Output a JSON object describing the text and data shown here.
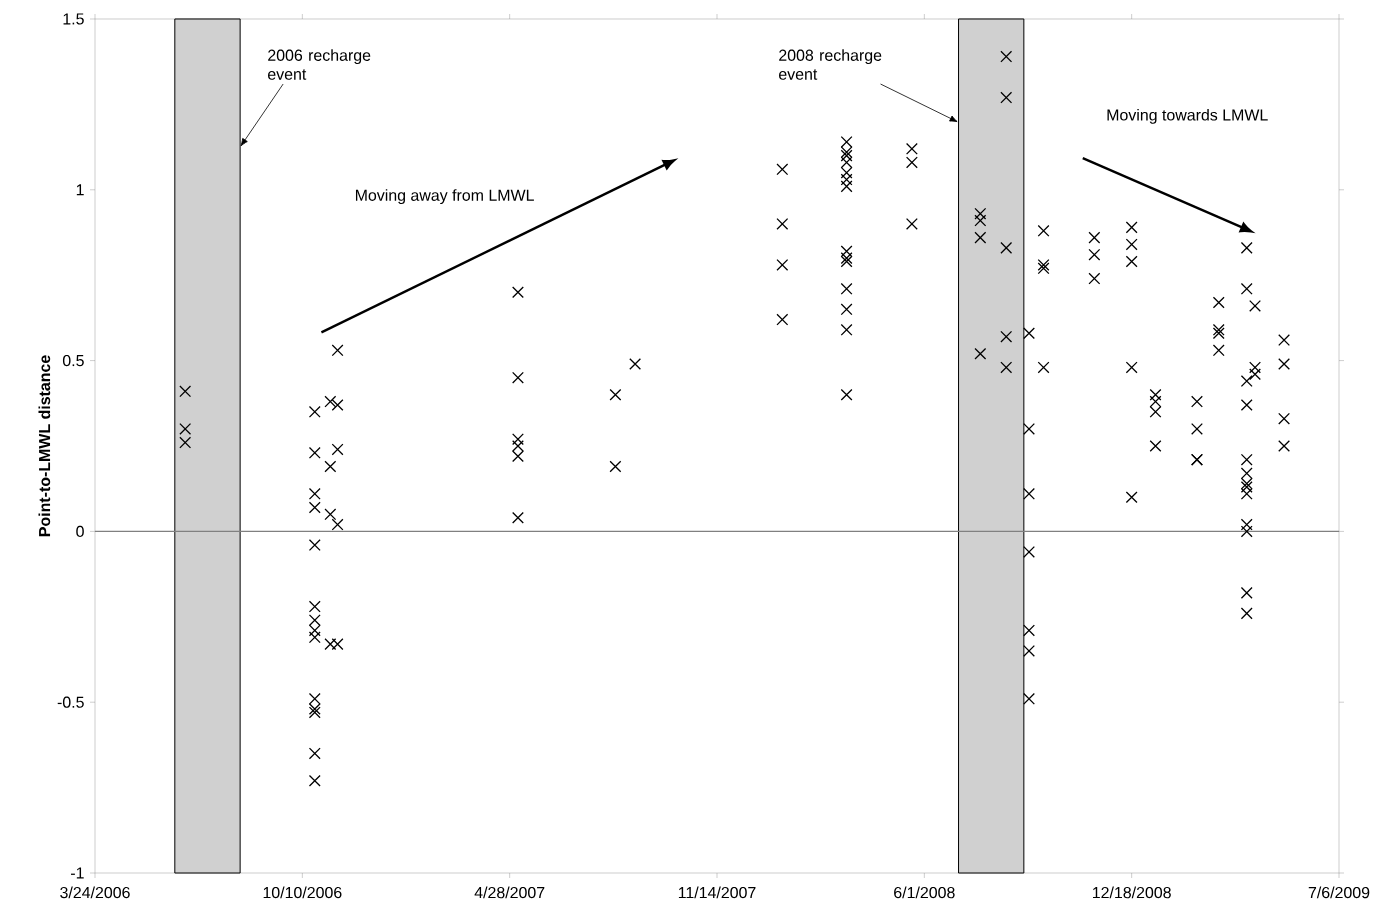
{
  "chart_data": {
    "type": "scatter",
    "ylabel": "Point-to-LMWL distance",
    "annotations": [
      "Moving away from LMWL",
      "Moving towards LMWL"
    ],
    "x": [
      "2006-06-19",
      "2006-06-19",
      "2006-06-19",
      "2006-10-22",
      "2006-10-22",
      "2006-10-22",
      "2006-10-22",
      "2006-10-22",
      "2006-10-22",
      "2006-10-22",
      "2006-10-22",
      "2006-10-22",
      "2006-10-22",
      "2006-10-22",
      "2006-10-22",
      "2006-10-22",
      "2006-10-22",
      "2006-11-06",
      "2006-11-06",
      "2006-11-06",
      "2006-11-06",
      "2006-11-13",
      "2006-11-13",
      "2006-11-13",
      "2006-11-13",
      "2006-11-13",
      "2007-05-06",
      "2007-05-06",
      "2007-05-06",
      "2007-05-06",
      "2007-05-06",
      "2007-05-06",
      "2007-08-08",
      "2007-08-08",
      "2007-08-27",
      "2008-01-16",
      "2008-01-16",
      "2008-01-16",
      "2008-01-16",
      "2008-03-18",
      "2008-03-18",
      "2008-03-18",
      "2008-03-18",
      "2008-03-18",
      "2008-03-18",
      "2008-03-18",
      "2008-03-18",
      "2008-03-18",
      "2008-03-18",
      "2008-03-18",
      "2008-03-18",
      "2008-03-18",
      "2008-03-18",
      "2008-05-20",
      "2008-05-20",
      "2008-05-20",
      "2008-07-25",
      "2008-07-25",
      "2008-07-25",
      "2008-07-25",
      "2008-08-19",
      "2008-08-19",
      "2008-08-19",
      "2008-08-19",
      "2008-08-19",
      "2008-09-10",
      "2008-09-10",
      "2008-09-10",
      "2008-09-10",
      "2008-09-10",
      "2008-09-10",
      "2008-09-10",
      "2008-09-24",
      "2008-09-24",
      "2008-09-24",
      "2008-09-24",
      "2008-11-12",
      "2008-11-12",
      "2008-11-12",
      "2008-12-18",
      "2008-12-18",
      "2008-12-18",
      "2008-12-18",
      "2008-12-18",
      "2009-01-10",
      "2009-01-10",
      "2009-01-10",
      "2009-01-10",
      "2009-02-19",
      "2009-02-19",
      "2009-02-19",
      "2009-02-19",
      "2009-03-12",
      "2009-03-12",
      "2009-03-12",
      "2009-03-12",
      "2009-04-08",
      "2009-04-08",
      "2009-04-08",
      "2009-04-08",
      "2009-04-08",
      "2009-04-08",
      "2009-04-08",
      "2009-04-08",
      "2009-04-08",
      "2009-04-08",
      "2009-04-08",
      "2009-04-08",
      "2009-04-08",
      "2009-04-16",
      "2009-04-16",
      "2009-04-16",
      "2009-05-14",
      "2009-05-14",
      "2009-05-14",
      "2009-05-14"
    ],
    "values": [
      0.41,
      0.3,
      0.26,
      0.35,
      0.23,
      0.11,
      0.07,
      -0.04,
      -0.22,
      -0.26,
      -0.29,
      -0.31,
      -0.49,
      -0.52,
      -0.53,
      -0.65,
      -0.73,
      0.38,
      0.19,
      0.05,
      -0.33,
      0.53,
      0.37,
      0.24,
      0.02,
      -0.33,
      0.7,
      0.45,
      0.27,
      0.25,
      0.22,
      0.04,
      0.4,
      0.19,
      0.49,
      1.06,
      0.9,
      0.78,
      0.62,
      1.14,
      1.11,
      1.1,
      1.08,
      1.05,
      1.03,
      1.01,
      0.82,
      0.8,
      0.79,
      0.71,
      0.65,
      0.59,
      0.4,
      1.12,
      1.08,
      0.9,
      0.93,
      0.91,
      0.86,
      0.52,
      1.39,
      1.27,
      0.83,
      0.57,
      0.48,
      0.58,
      0.3,
      0.11,
      -0.06,
      -0.29,
      -0.35,
      -0.49,
      0.88,
      0.78,
      0.77,
      0.48,
      0.86,
      0.81,
      0.74,
      0.89,
      0.84,
      0.79,
      0.48,
      0.1,
      0.4,
      0.38,
      0.35,
      0.25,
      0.38,
      0.3,
      0.21,
      0.21,
      0.67,
      0.59,
      0.58,
      0.53,
      0.83,
      0.71,
      0.44,
      0.37,
      0.21,
      0.17,
      0.14,
      0.13,
      0.11,
      0.02,
      0.0,
      -0.18,
      -0.24,
      0.66,
      0.48,
      0.46,
      0.56,
      0.49,
      0.33,
      0.25
    ],
    "color": "#000000",
    "marker": "cross",
    "xlim": [
      "2006-03-24",
      "2009-07-06"
    ],
    "xticks": [
      {
        "value": "2006-03-24",
        "label": "3/24/2006"
      },
      {
        "value": "2006-10-10",
        "label": "10/10/2006"
      },
      {
        "value": "2007-04-28",
        "label": "4/28/2007"
      },
      {
        "value": "2007-11-14",
        "label": "11/14/2007"
      },
      {
        "value": "2008-06-01",
        "label": "6/1/2008"
      },
      {
        "value": "2008-12-18",
        "label": "12/18/2008"
      },
      {
        "value": "2009-07-06",
        "label": "7/6/2009"
      }
    ],
    "ylim": [
      -1,
      1.5
    ],
    "yticks": [
      -1,
      -0.5,
      0,
      0.5,
      1,
      1.5
    ],
    "bands": [
      {
        "axis": "x",
        "from": "2006-06-09",
        "to": "2006-08-11",
        "label": "2006 recharge event",
        "color": "#d0d0d0"
      },
      {
        "axis": "x",
        "from": "2008-07-04",
        "to": "2008-09-05",
        "label": "2008 recharge event",
        "color": "#d0d0d0"
      }
    ],
    "ref_lines": [
      {
        "axis": "y",
        "value": 0,
        "color": "#808080"
      }
    ]
  }
}
